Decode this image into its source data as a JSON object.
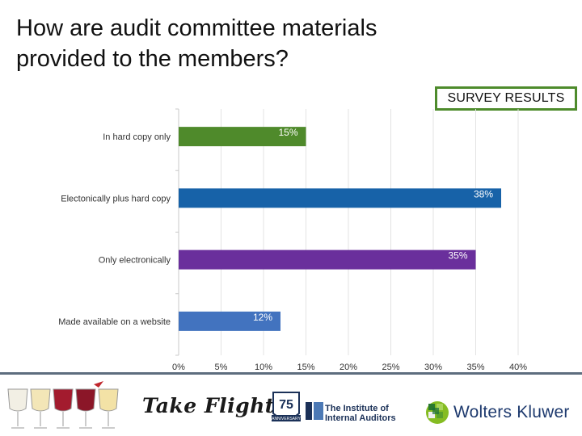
{
  "title": "How are audit committee materials provided to the members?",
  "badge": "SURVEY RESULTS",
  "chart_data": {
    "type": "bar",
    "orientation": "horizontal",
    "categories": [
      "In hard copy only",
      "Electonically plus hard copy",
      "Only electronically",
      "Made available on a website"
    ],
    "values": [
      15,
      38,
      35,
      12
    ],
    "data_labels": [
      "15%",
      "38%",
      "35%",
      "12%"
    ],
    "colors": [
      "#4f8a2b",
      "#1762a8",
      "#6a2f9c",
      "#4273bf"
    ],
    "xlim": [
      0,
      40
    ],
    "x_ticks": [
      "0%",
      "5%",
      "10%",
      "15%",
      "20%",
      "25%",
      "30%",
      "35%",
      "40%"
    ],
    "x_tick_values": [
      0,
      5,
      10,
      15,
      20,
      25,
      30,
      35,
      40
    ],
    "grid": true,
    "legend": "none"
  },
  "footer": {
    "logo1_text": "Take Flight",
    "logo2_line1": "The Institute of",
    "logo2_line2": "Internal Auditors",
    "logo2_badge": "75",
    "logo2_small": "ANNIVERSARY",
    "logo3_text": "Wolters Kluwer"
  }
}
